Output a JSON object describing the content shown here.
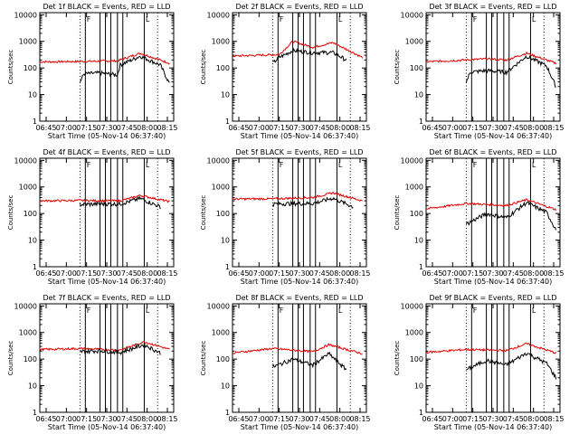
{
  "chart_data": [
    {
      "type": "line",
      "title": "Det 1f BLACK = Events, RED = LLD",
      "xlabel": "Start Time (05-Nov-14 06:37:40)",
      "ylabel": "Counts/sec",
      "yscale": "log",
      "ylim": [
        1,
        12000
      ],
      "x_ticks": [
        "06:45",
        "07:00",
        "07:15",
        "07:30",
        "07:45",
        "08:00",
        "08:15"
      ],
      "y_ticks": [
        "1",
        "10",
        "100",
        "1000",
        "10000"
      ],
      "series": [
        {
          "name": "RED = LLD",
          "x": [
            0,
            0.3,
            0.45,
            0.58,
            0.75,
            0.97
          ],
          "y": [
            170,
            175,
            180,
            185,
            360,
            150
          ]
        },
        {
          "name": "BLACK = Events",
          "x": [
            0.3,
            0.33,
            0.45,
            0.58,
            0.6,
            0.75,
            0.9,
            0.97
          ],
          "y": [
            30,
            60,
            65,
            55,
            130,
            280,
            130,
            25
          ]
        }
      ]
    },
    {
      "type": "line",
      "title": "Det 2f BLACK = Events, RED = LLD",
      "xlabel": "Start Time (05-Nov-14 06:37:40)",
      "ylabel": "Counts/sec",
      "yscale": "log",
      "ylim": [
        1,
        12000
      ],
      "x_ticks": [
        "06:45",
        "07:00",
        "07:15",
        "07:30",
        "07:45",
        "08:00",
        "08:15"
      ],
      "y_ticks": [
        "1",
        "10",
        "100",
        "1000",
        "10000"
      ],
      "series": [
        {
          "name": "RED = LLD",
          "x": [
            0,
            0.35,
            0.45,
            0.6,
            0.75,
            0.97
          ],
          "y": [
            280,
            320,
            1000,
            600,
            900,
            250
          ]
        },
        {
          "name": "BLACK = Events",
          "x": [
            0.3,
            0.35,
            0.45,
            0.6,
            0.75,
            0.85
          ],
          "y": [
            150,
            250,
            450,
            380,
            380,
            200
          ]
        }
      ]
    },
    {
      "type": "line",
      "title": "Det 3f BLACK = Events, RED = LLD",
      "xlabel": "Start Time (05-Nov-14 06:37:40)",
      "ylabel": "Counts/sec",
      "yscale": "log",
      "ylim": [
        1,
        12000
      ],
      "x_ticks": [
        "06:45",
        "07:00",
        "07:15",
        "07:30",
        "07:45",
        "08:00",
        "08:15"
      ],
      "y_ticks": [
        "1",
        "10",
        "100",
        "1000",
        "10000"
      ],
      "series": [
        {
          "name": "RED = LLD",
          "x": [
            0,
            0.3,
            0.45,
            0.6,
            0.75,
            0.97
          ],
          "y": [
            170,
            200,
            220,
            200,
            360,
            150
          ]
        },
        {
          "name": "BLACK = Events",
          "x": [
            0.3,
            0.33,
            0.45,
            0.6,
            0.75,
            0.9,
            0.97
          ],
          "y": [
            30,
            70,
            80,
            70,
            280,
            120,
            20
          ]
        }
      ]
    },
    {
      "type": "line",
      "title": "Det 4f BLACK = Events, RED = LLD",
      "xlabel": "Start Time (05-Nov-14 06:37:40)",
      "ylabel": "Counts/sec",
      "yscale": "log",
      "ylim": [
        1,
        12000
      ],
      "x_ticks": [
        "06:45",
        "07:00",
        "07:15",
        "07:30",
        "07:45",
        "08:00",
        "08:15"
      ],
      "y_ticks": [
        "1",
        "10",
        "100",
        "1000",
        "10000"
      ],
      "series": [
        {
          "name": "RED = LLD",
          "x": [
            0,
            0.3,
            0.6,
            0.75,
            0.97
          ],
          "y": [
            300,
            310,
            300,
            480,
            280
          ]
        },
        {
          "name": "BLACK = Events",
          "x": [
            0.3,
            0.45,
            0.6,
            0.75,
            0.9
          ],
          "y": [
            220,
            230,
            230,
            370,
            180
          ]
        }
      ]
    },
    {
      "type": "line",
      "title": "Det 5f BLACK = Events, RED = LLD",
      "xlabel": "Start Time (05-Nov-14 06:37:40)",
      "ylabel": "Counts/sec",
      "yscale": "log",
      "ylim": [
        1,
        12000
      ],
      "x_ticks": [
        "06:45",
        "07:00",
        "07:15",
        "07:30",
        "07:45",
        "08:00",
        "08:15"
      ],
      "y_ticks": [
        "1",
        "10",
        "100",
        "1000",
        "10000"
      ],
      "series": [
        {
          "name": "RED = LLD",
          "x": [
            0,
            0.3,
            0.6,
            0.75,
            0.97
          ],
          "y": [
            350,
            360,
            400,
            600,
            300
          ]
        },
        {
          "name": "BLACK = Events",
          "x": [
            0.3,
            0.45,
            0.6,
            0.75,
            0.9
          ],
          "y": [
            230,
            240,
            240,
            380,
            180
          ]
        }
      ]
    },
    {
      "type": "line",
      "title": "Det 6f BLACK = Events, RED = LLD",
      "xlabel": "Start Time (05-Nov-14 06:37:40)",
      "ylabel": "Counts/sec",
      "yscale": "log",
      "ylim": [
        1,
        12000
      ],
      "x_ticks": [
        "06:45",
        "07:00",
        "07:15",
        "07:30",
        "07:45",
        "08:00",
        "08:15"
      ],
      "y_ticks": [
        "1",
        "10",
        "100",
        "1000",
        "10000"
      ],
      "series": [
        {
          "name": "RED = LLD",
          "x": [
            0,
            0.3,
            0.6,
            0.75,
            0.97
          ],
          "y": [
            150,
            240,
            200,
            330,
            140
          ]
        },
        {
          "name": "BLACK = Events",
          "x": [
            0.3,
            0.45,
            0.6,
            0.75,
            0.9,
            0.97
          ],
          "y": [
            40,
            100,
            70,
            260,
            110,
            25
          ]
        }
      ]
    },
    {
      "type": "line",
      "title": "Det 7f BLACK = Events, RED = LLD",
      "xlabel": "Start Time (05-Nov-14 06:37:40)",
      "ylabel": "Counts/sec",
      "yscale": "log",
      "ylim": [
        1,
        12000
      ],
      "x_ticks": [
        "06:45",
        "07:00",
        "07:15",
        "07:30",
        "07:45",
        "08:00",
        "08:15"
      ],
      "y_ticks": [
        "1",
        "10",
        "100",
        "1000",
        "10000"
      ],
      "series": [
        {
          "name": "RED = LLD",
          "x": [
            0,
            0.3,
            0.6,
            0.78,
            0.97
          ],
          "y": [
            230,
            250,
            220,
            450,
            230
          ]
        },
        {
          "name": "BLACK = Events",
          "x": [
            0.3,
            0.45,
            0.6,
            0.78,
            0.9
          ],
          "y": [
            190,
            210,
            180,
            350,
            170
          ]
        }
      ]
    },
    {
      "type": "line",
      "title": "Det 8f BLACK = Events, RED = LLD",
      "xlabel": "Start Time (05-Nov-14 06:37:40)",
      "ylabel": "Counts/sec",
      "yscale": "log",
      "ylim": [
        1,
        12000
      ],
      "x_ticks": [
        "06:45",
        "07:00",
        "07:15",
        "07:30",
        "07:45",
        "08:00",
        "08:15"
      ],
      "y_ticks": [
        "1",
        "10",
        "100",
        "1000",
        "10000"
      ],
      "series": [
        {
          "name": "RED = LLD",
          "x": [
            0,
            0.3,
            0.6,
            0.72,
            0.97
          ],
          "y": [
            170,
            250,
            190,
            350,
            160
          ]
        },
        {
          "name": "BLACK = Events",
          "x": [
            0.3,
            0.45,
            0.6,
            0.72,
            0.85
          ],
          "y": [
            50,
            100,
            60,
            160,
            40
          ]
        }
      ]
    },
    {
      "type": "line",
      "title": "Det 9f BLACK = Events, RED = LLD",
      "xlabel": "Start Time (05-Nov-14 06:37:40)",
      "ylabel": "Counts/sec",
      "yscale": "log",
      "ylim": [
        1,
        12000
      ],
      "x_ticks": [
        "06:45",
        "07:00",
        "07:15",
        "07:30",
        "07:45",
        "08:00",
        "08:15"
      ],
      "y_ticks": [
        "1",
        "10",
        "100",
        "1000",
        "10000"
      ],
      "series": [
        {
          "name": "RED = LLD",
          "x": [
            0,
            0.3,
            0.6,
            0.75,
            0.97
          ],
          "y": [
            180,
            230,
            210,
            380,
            170
          ]
        },
        {
          "name": "BLACK = Events",
          "x": [
            0.3,
            0.45,
            0.6,
            0.75,
            0.9,
            0.97
          ],
          "y": [
            40,
            90,
            60,
            170,
            70,
            20
          ]
        }
      ]
    }
  ],
  "markers": {
    "start": "F",
    "end": "L"
  }
}
